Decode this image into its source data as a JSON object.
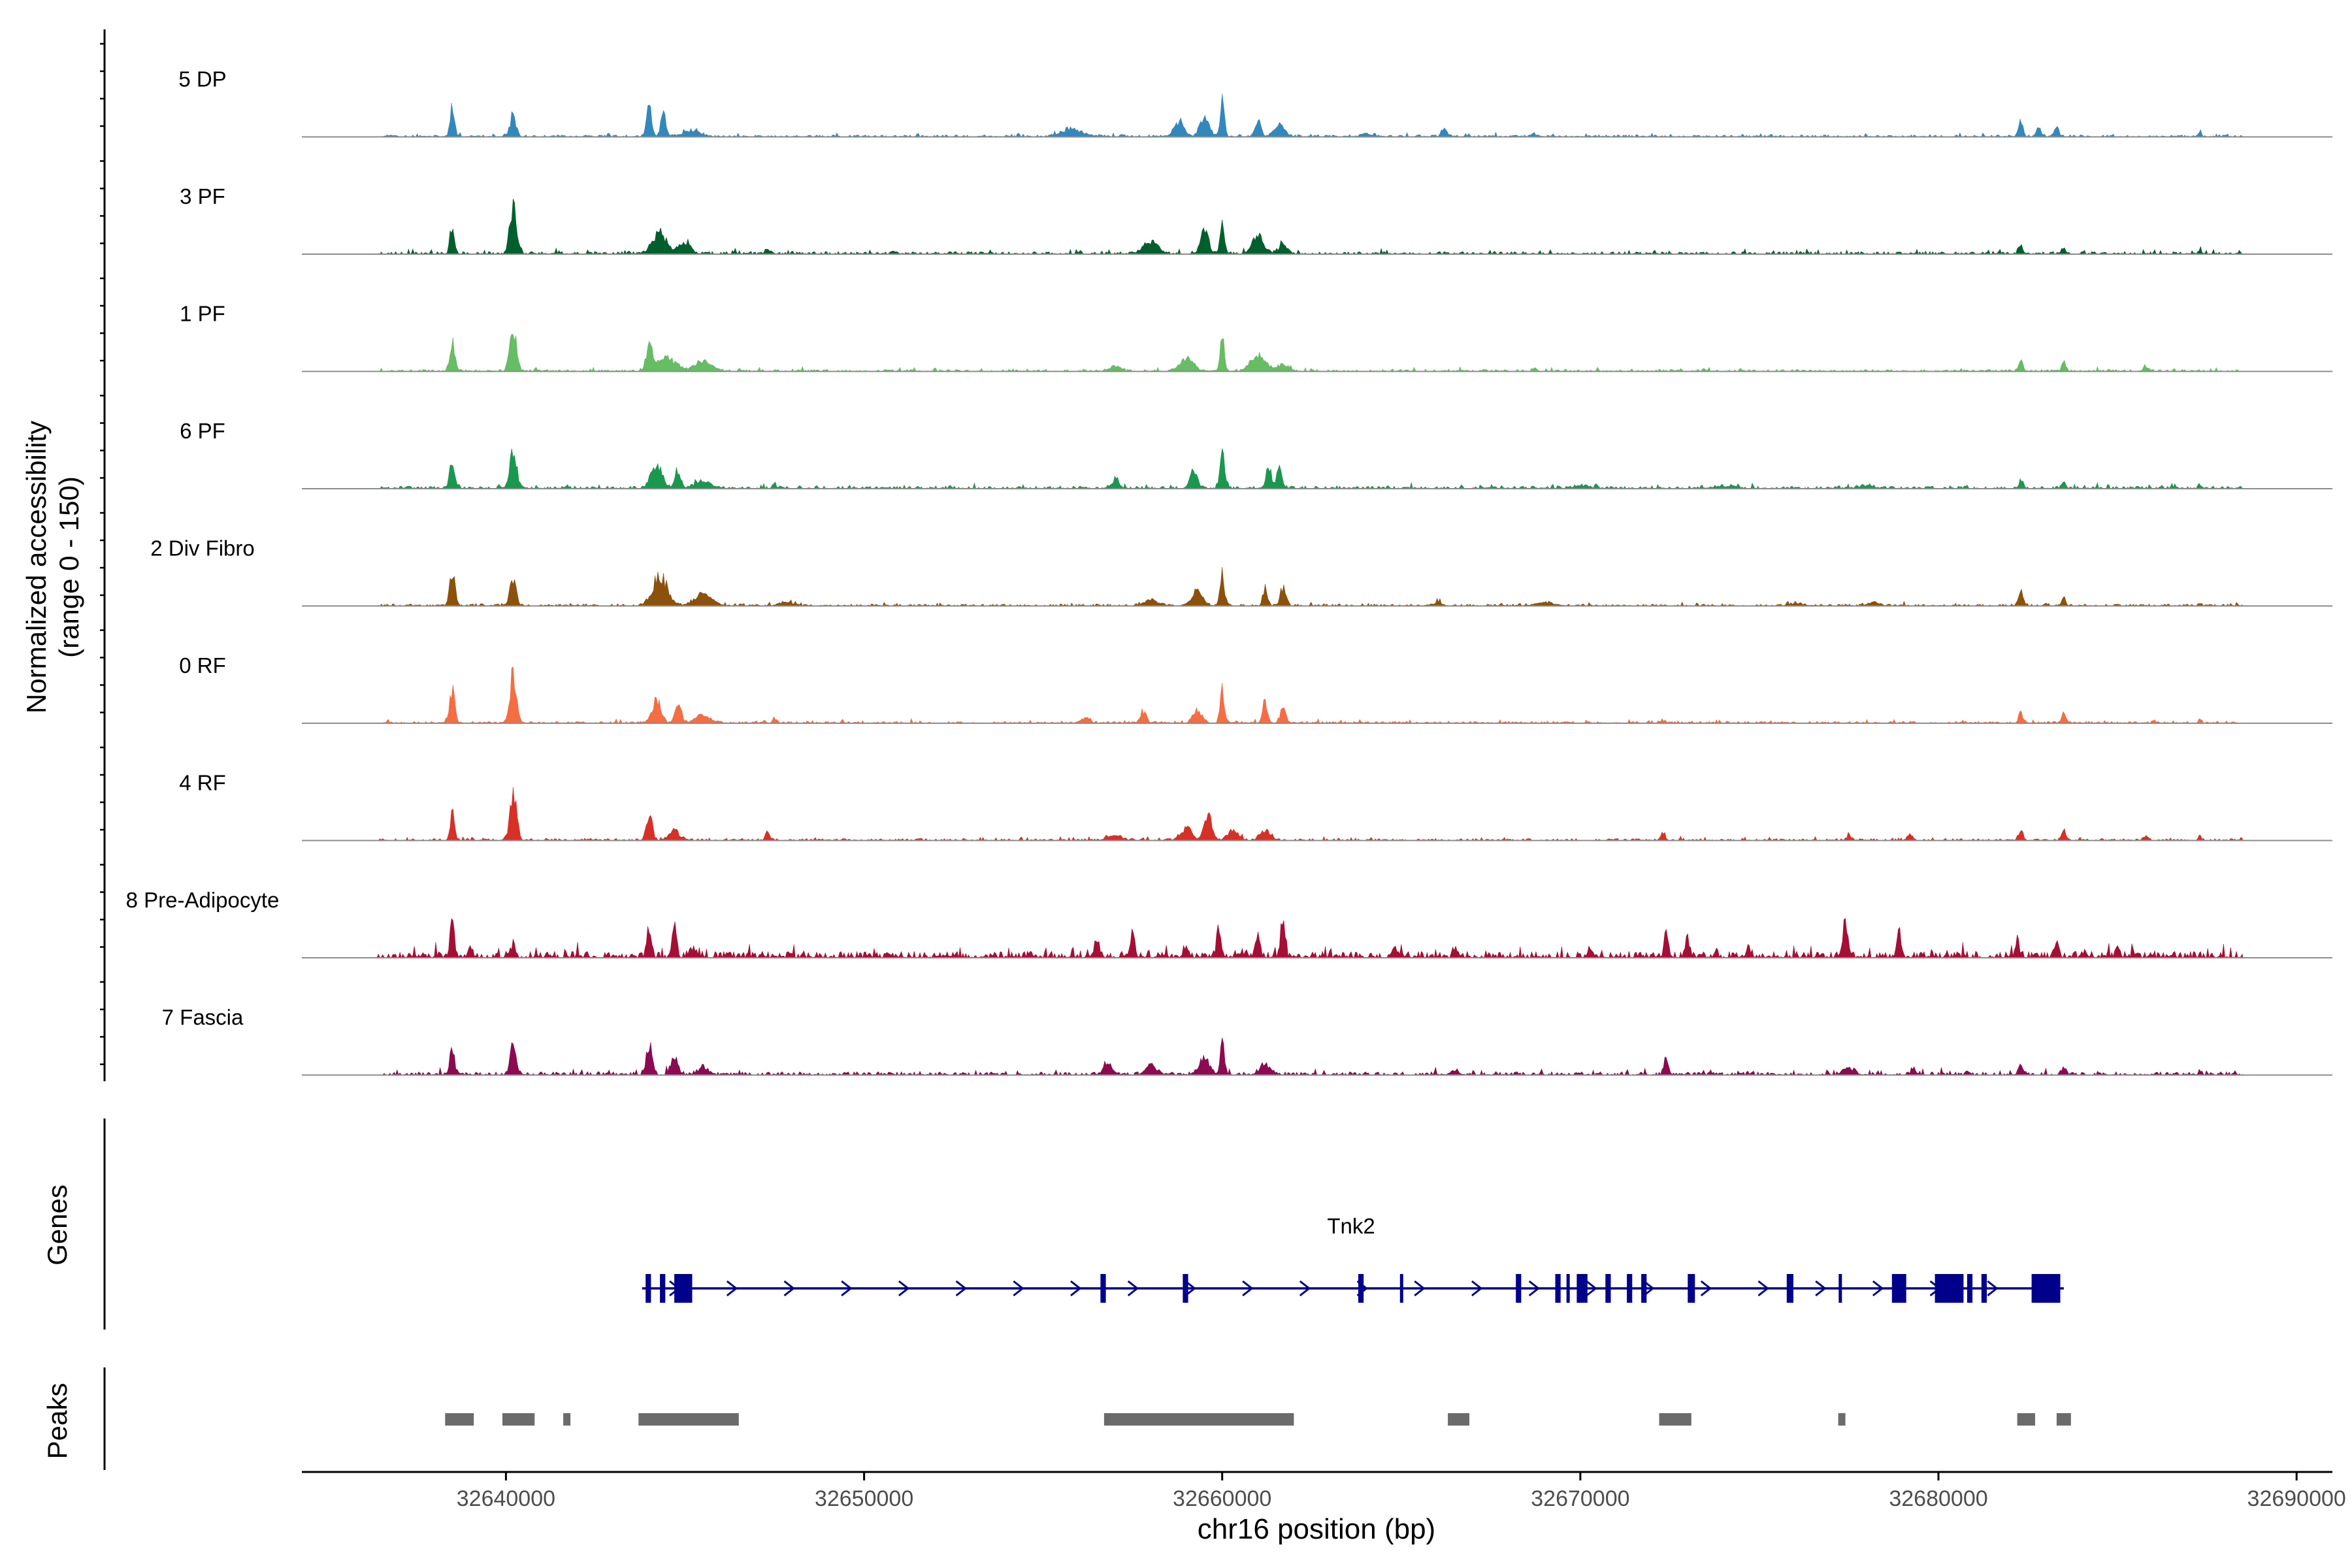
{
  "chart_data": {
    "type": "area",
    "title": "",
    "ylabel_line1": "Normalized accessibility",
    "ylabel_line2": "(range 0 - 150)",
    "xlabel": "chr16 position (bp)",
    "xlim": [
      32634300,
      32691000
    ],
    "ylim": [
      0,
      150
    ],
    "x_ticks": [
      32640000,
      32650000,
      32660000,
      32670000,
      32680000,
      32690000
    ],
    "x_tick_labels": [
      "32640000",
      "32650000",
      "32660000",
      "32670000",
      "32680000",
      "32690000"
    ],
    "data_extent": [
      32636400,
      32688500
    ],
    "tracks": [
      {
        "name": "5 DP",
        "color": "#3288bd",
        "noise": 3,
        "seed": 11,
        "peaks": [
          [
            32638500,
            90,
            60
          ],
          [
            32640200,
            60,
            80
          ],
          [
            32644000,
            85,
            70
          ],
          [
            32644400,
            75,
            70
          ],
          [
            32645200,
            15,
            250
          ],
          [
            32655800,
            20,
            300
          ],
          [
            32658800,
            40,
            150
          ],
          [
            32659500,
            60,
            120
          ],
          [
            32660000,
            95,
            60
          ],
          [
            32661000,
            45,
            80
          ],
          [
            32661600,
            30,
            150
          ],
          [
            32664000,
            10,
            120
          ],
          [
            32666200,
            25,
            80
          ],
          [
            32668700,
            10,
            40
          ],
          [
            32682300,
            45,
            60
          ],
          [
            32682800,
            25,
            60
          ],
          [
            32683300,
            30,
            60
          ],
          [
            32687300,
            15,
            40
          ]
        ]
      },
      {
        "name": "3 PF",
        "color": "#00602d",
        "noise": 4,
        "seed": 23,
        "peaks": [
          [
            32638500,
            80,
            60
          ],
          [
            32640200,
            140,
            90
          ],
          [
            32644300,
            60,
            200
          ],
          [
            32645000,
            35,
            150
          ],
          [
            32647300,
            15,
            60
          ],
          [
            32650800,
            10,
            50
          ],
          [
            32658000,
            30,
            200
          ],
          [
            32659500,
            75,
            100
          ],
          [
            32660000,
            85,
            60
          ],
          [
            32661000,
            55,
            150
          ],
          [
            32661700,
            25,
            120
          ],
          [
            32682300,
            25,
            50
          ],
          [
            32683500,
            20,
            50
          ],
          [
            32687300,
            15,
            40
          ]
        ]
      },
      {
        "name": "1 PF",
        "color": "#66bd63",
        "noise": 3,
        "seed": 37,
        "peaks": [
          [
            32638500,
            85,
            70
          ],
          [
            32640200,
            125,
            90
          ],
          [
            32644000,
            75,
            80
          ],
          [
            32644500,
            35,
            250
          ],
          [
            32645500,
            25,
            250
          ],
          [
            32657000,
            15,
            150
          ],
          [
            32659000,
            35,
            200
          ],
          [
            32660000,
            90,
            60
          ],
          [
            32661000,
            45,
            200
          ],
          [
            32661700,
            20,
            150
          ],
          [
            32668700,
            8,
            50
          ],
          [
            32682300,
            30,
            60
          ],
          [
            32683500,
            30,
            60
          ],
          [
            32685800,
            10,
            80
          ]
        ]
      },
      {
        "name": "6 PF",
        "color": "#1a9850",
        "noise": 4,
        "seed": 41,
        "peaks": [
          [
            32638500,
            75,
            70
          ],
          [
            32640200,
            115,
            90
          ],
          [
            32644200,
            60,
            150
          ],
          [
            32644800,
            55,
            80
          ],
          [
            32645500,
            20,
            200
          ],
          [
            32647500,
            12,
            60
          ],
          [
            32657000,
            25,
            100
          ],
          [
            32659200,
            45,
            100
          ],
          [
            32660000,
            100,
            60
          ],
          [
            32661300,
            65,
            60
          ],
          [
            32661600,
            55,
            80
          ],
          [
            32670000,
            8,
            200
          ],
          [
            32674000,
            6,
            300
          ],
          [
            32678000,
            8,
            200
          ],
          [
            32682300,
            25,
            50
          ],
          [
            32683500,
            20,
            50
          ],
          [
            32687300,
            10,
            40
          ]
        ]
      },
      {
        "name": "2 Div Fibro",
        "color": "#8c510a",
        "noise": 3,
        "seed": 53,
        "peaks": [
          [
            32638500,
            95,
            70
          ],
          [
            32640200,
            80,
            80
          ],
          [
            32644300,
            85,
            200
          ],
          [
            32645500,
            30,
            250
          ],
          [
            32647800,
            8,
            200
          ],
          [
            32658000,
            15,
            200
          ],
          [
            32659300,
            40,
            150
          ],
          [
            32660000,
            100,
            60
          ],
          [
            32661200,
            55,
            60
          ],
          [
            32661700,
            50,
            80
          ],
          [
            32666000,
            8,
            150
          ],
          [
            32669000,
            8,
            300
          ],
          [
            32676000,
            6,
            200
          ],
          [
            32678200,
            10,
            150
          ],
          [
            32682300,
            45,
            60
          ],
          [
            32683500,
            25,
            50
          ],
          [
            32687300,
            10,
            40
          ]
        ]
      },
      {
        "name": "0 RF",
        "color": "#f46d43",
        "noise": 3,
        "seed": 67,
        "peaks": [
          [
            32638500,
            90,
            70
          ],
          [
            32640200,
            140,
            90
          ],
          [
            32644200,
            65,
            120
          ],
          [
            32644800,
            45,
            100
          ],
          [
            32645500,
            20,
            200
          ],
          [
            32647500,
            12,
            60
          ],
          [
            32656200,
            15,
            100
          ],
          [
            32657800,
            35,
            80
          ],
          [
            32659300,
            35,
            120
          ],
          [
            32660000,
            90,
            60
          ],
          [
            32661200,
            70,
            60
          ],
          [
            32661700,
            40,
            80
          ],
          [
            32672300,
            8,
            60
          ],
          [
            32682300,
            30,
            60
          ],
          [
            32683500,
            30,
            60
          ],
          [
            32687300,
            10,
            40
          ]
        ]
      },
      {
        "name": "4 RF",
        "color": "#d73027",
        "noise": 3,
        "seed": 71,
        "peaks": [
          [
            32638500,
            75,
            60
          ],
          [
            32640200,
            140,
            90
          ],
          [
            32644000,
            75,
            80
          ],
          [
            32644700,
            25,
            150
          ],
          [
            32647300,
            20,
            60
          ],
          [
            32657000,
            12,
            200
          ],
          [
            32659000,
            35,
            150
          ],
          [
            32659600,
            75,
            100
          ],
          [
            32660300,
            25,
            150
          ],
          [
            32661200,
            25,
            150
          ],
          [
            32672300,
            20,
            60
          ],
          [
            32677500,
            15,
            60
          ],
          [
            32679200,
            20,
            60
          ],
          [
            32682300,
            30,
            60
          ],
          [
            32683500,
            25,
            60
          ],
          [
            32685800,
            12,
            60
          ],
          [
            32687300,
            15,
            40
          ]
        ]
      },
      {
        "name": "8 Pre-Adipocyte",
        "color": "#a50f35",
        "noise": 10,
        "seed": 83,
        "peaks": [
          [
            32638500,
            100,
            60
          ],
          [
            32639000,
            30,
            60
          ],
          [
            32640200,
            40,
            60
          ],
          [
            32644000,
            70,
            60
          ],
          [
            32644700,
            85,
            60
          ],
          [
            32645200,
            25,
            100
          ],
          [
            32656500,
            40,
            80
          ],
          [
            32657500,
            60,
            60
          ],
          [
            32659000,
            35,
            60
          ],
          [
            32659900,
            75,
            60
          ],
          [
            32661000,
            60,
            60
          ],
          [
            32661700,
            90,
            60
          ],
          [
            32664800,
            20,
            80
          ],
          [
            32666500,
            25,
            60
          ],
          [
            32670300,
            20,
            60
          ],
          [
            32672400,
            65,
            60
          ],
          [
            32673000,
            45,
            60
          ],
          [
            32674700,
            20,
            60
          ],
          [
            32677400,
            105,
            60
          ],
          [
            32678900,
            70,
            60
          ],
          [
            32682200,
            45,
            60
          ],
          [
            32683300,
            35,
            60
          ],
          [
            32685000,
            30,
            60
          ]
        ]
      },
      {
        "name": "7 Fascia",
        "color": "#8b0a50",
        "noise": 5,
        "seed": 97,
        "peaks": [
          [
            32638500,
            75,
            60
          ],
          [
            32640200,
            90,
            80
          ],
          [
            32644000,
            85,
            80
          ],
          [
            32644700,
            50,
            100
          ],
          [
            32645500,
            20,
            150
          ],
          [
            32656800,
            35,
            100
          ],
          [
            32658000,
            25,
            150
          ],
          [
            32659500,
            45,
            150
          ],
          [
            32660000,
            90,
            60
          ],
          [
            32661200,
            25,
            150
          ],
          [
            32666500,
            12,
            100
          ],
          [
            32672400,
            40,
            60
          ],
          [
            32677500,
            20,
            150
          ],
          [
            32679300,
            20,
            60
          ],
          [
            32682300,
            30,
            60
          ],
          [
            32683500,
            20,
            60
          ],
          [
            32687300,
            12,
            40
          ]
        ]
      }
    ],
    "genes": {
      "track_label": "Genes",
      "color": "#00008b",
      "name": "Tnk2",
      "strand": "+",
      "start": 32643800,
      "end": 32683500,
      "exons": [
        [
          32643900,
          32644050
        ],
        [
          32644300,
          32644450
        ],
        [
          32644700,
          32645200
        ],
        [
          32656600,
          32656750
        ],
        [
          32658900,
          32659050
        ],
        [
          32663800,
          32663950
        ],
        [
          32668200,
          32668350
        ],
        [
          32669300,
          32669450
        ],
        [
          32669900,
          32670200
        ],
        [
          32670700,
          32670850
        ],
        [
          32671300,
          32671450
        ],
        [
          32671700,
          32671850
        ],
        [
          32673000,
          32673200
        ],
        [
          32675800,
          32675950
        ],
        [
          32678700,
          32679100
        ],
        [
          32679900,
          32680100
        ],
        [
          32680100,
          32680700
        ],
        [
          32680800,
          32680950
        ],
        [
          32681200,
          32681350
        ],
        [
          32682600,
          32683400
        ]
      ],
      "thin_exons": [
        32643950,
        32656650,
        32658950,
        32665000,
        32669650,
        32670750,
        32675800,
        32677250
      ]
    },
    "peaks_track": {
      "track_label": "Peaks",
      "color": "#6b6b6b",
      "regions": [
        [
          32638300,
          32639100
        ],
        [
          32639900,
          32640800
        ],
        [
          32641600,
          32641800
        ],
        [
          32643700,
          32646500
        ],
        [
          32656700,
          32662000
        ],
        [
          32666300,
          32666900
        ],
        [
          32672200,
          32673100
        ],
        [
          32677200,
          32677400
        ],
        [
          32682200,
          32682700
        ],
        [
          32683300,
          32683700
        ]
      ]
    }
  }
}
